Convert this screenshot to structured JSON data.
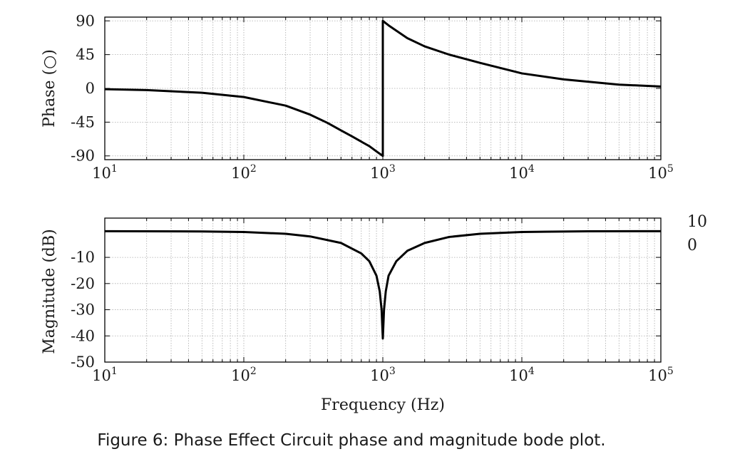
{
  "figure": {
    "caption": "Figure 6: Phase Effect Circuit phase and magnitude bode plot.",
    "stray_labels": [
      "10",
      "0"
    ]
  },
  "colors": {
    "curve": "#000000",
    "grid": "#aaaaaa",
    "frame": "#000000"
  },
  "chart_data": [
    {
      "type": "line",
      "title": "",
      "xlabel": "",
      "ylabel": "Phase (○)",
      "x_scale": "log",
      "xlim": [
        10,
        100000
      ],
      "ylim": [
        -95,
        95
      ],
      "x_ticks": [
        10,
        100,
        1000,
        10000,
        100000
      ],
      "x_tick_labels": [
        {
          "base": "10",
          "exp": "1"
        },
        {
          "base": "10",
          "exp": "2"
        },
        {
          "base": "10",
          "exp": "3"
        },
        {
          "base": "10",
          "exp": "4"
        },
        {
          "base": "10",
          "exp": "5"
        }
      ],
      "y_ticks": [
        90,
        45,
        0,
        -45,
        -90
      ],
      "y_tick_labels": [
        "90",
        "45",
        "0",
        "-45",
        "-90"
      ],
      "grid": true,
      "series": [
        {
          "x": [
            10,
            20,
            50,
            100,
            200,
            300,
            400,
            500,
            600,
            700,
            800,
            900,
            1000,
            1000,
            1100,
            1250,
            1500,
            2000,
            3000,
            5000,
            10000,
            20000,
            50000,
            100000
          ],
          "y": [
            -1.1,
            -2.3,
            -5.8,
            -11.5,
            -23.0,
            -35.0,
            -46.0,
            -56.0,
            -64.0,
            -71.0,
            -77.0,
            -84.0,
            -90,
            90,
            84.0,
            77.0,
            67.0,
            56.0,
            45.0,
            34.0,
            20.0,
            12.0,
            5.0,
            2.5
          ]
        }
      ]
    },
    {
      "type": "line",
      "title": "",
      "xlabel": "Frequency (Hz)",
      "ylabel": "Magnitude (dB)",
      "x_scale": "log",
      "xlim": [
        10,
        100000
      ],
      "ylim": [
        -50,
        5
      ],
      "x_ticks": [
        10,
        100,
        1000,
        10000,
        100000
      ],
      "x_tick_labels": [
        {
          "base": "10",
          "exp": "1"
        },
        {
          "base": "10",
          "exp": "2"
        },
        {
          "base": "10",
          "exp": "3"
        },
        {
          "base": "10",
          "exp": "4"
        },
        {
          "base": "10",
          "exp": "5"
        }
      ],
      "y_ticks": [
        -10,
        -20,
        -30,
        -40,
        -50
      ],
      "y_tick_labels": [
        "-10",
        "-20",
        "-30",
        "-40",
        "-50"
      ],
      "grid": true,
      "series": [
        {
          "x": [
            10,
            50,
            100,
            200,
            300,
            500,
            700,
            800,
            900,
            950,
            980,
            1000,
            1020,
            1050,
            1100,
            1250,
            1500,
            2000,
            3000,
            5000,
            10000,
            30000,
            100000
          ],
          "y": [
            0,
            -0.1,
            -0.3,
            -1.0,
            -2.0,
            -4.5,
            -8.5,
            -11.5,
            -17.0,
            -23.0,
            -30.0,
            -41.0,
            -30.0,
            -23.0,
            -17.0,
            -11.5,
            -7.5,
            -4.5,
            -2.2,
            -1.0,
            -0.3,
            -0.05,
            0
          ]
        }
      ]
    }
  ]
}
